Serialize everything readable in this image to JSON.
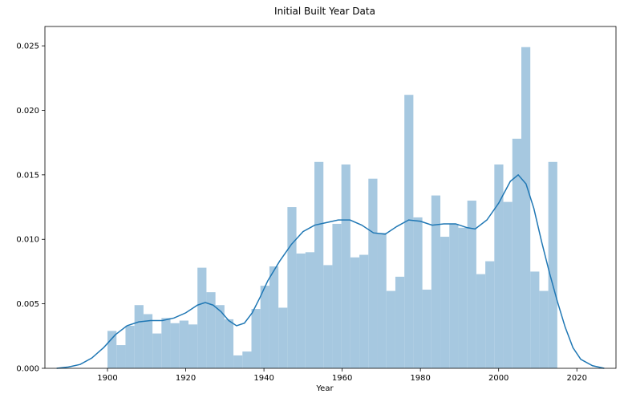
{
  "chart_data": {
    "type": "histogram",
    "title": "Initial Built Year Data",
    "xlabel": "Year",
    "ylabel": "",
    "xlim": [
      1884,
      2030
    ],
    "ylim": [
      0,
      0.0265
    ],
    "x_ticks": [
      1900,
      1920,
      1940,
      1960,
      1980,
      2000,
      2020
    ],
    "y_ticks": [
      "0.000",
      "0.005",
      "0.010",
      "0.015",
      "0.020",
      "0.025"
    ],
    "grid": false,
    "legend": "none",
    "bar_color": "#a6c8e0",
    "line_color": "#1f77b4",
    "bins": {
      "start": 1900,
      "end": 2015,
      "values": [
        0.0029,
        0.0018,
        0.0033,
        0.0049,
        0.0042,
        0.0027,
        0.0039,
        0.0035,
        0.0037,
        0.0034,
        0.0078,
        0.0059,
        0.0049,
        0.0038,
        0.001,
        0.0013,
        0.0046,
        0.0064,
        0.0079,
        0.0047,
        0.0125,
        0.0089,
        0.009,
        0.016,
        0.008,
        0.0112,
        0.0158,
        0.0086,
        0.0088,
        0.0147,
        0.0105,
        0.006,
        0.0071,
        0.0212,
        0.0117,
        0.0061,
        0.0134,
        0.0102,
        0.0112,
        0.0109,
        0.013,
        0.0073,
        0.0083,
        0.0158,
        0.0129,
        0.0178,
        0.0249,
        0.0075,
        0.006,
        0.016
      ]
    },
    "kde_line": {
      "x": [
        1887,
        1890,
        1893,
        1896,
        1899,
        1902,
        1905,
        1908,
        1911,
        1914,
        1917,
        1920,
        1923,
        1925,
        1927,
        1929,
        1931,
        1933,
        1935,
        1937,
        1939,
        1941,
        1944,
        1947,
        1950,
        1953,
        1956,
        1959,
        1962,
        1965,
        1968,
        1971,
        1974,
        1977,
        1980,
        1983,
        1986,
        1989,
        1992,
        1994,
        1997,
        2000,
        2003,
        2005,
        2007,
        2009,
        2011,
        2013,
        2015,
        2017,
        2019,
        2021,
        2024,
        2027
      ],
      "y": [
        0.0,
        0.0001,
        0.0003,
        0.0008,
        0.0016,
        0.0026,
        0.0033,
        0.0036,
        0.0037,
        0.0037,
        0.0039,
        0.0043,
        0.0049,
        0.0051,
        0.0049,
        0.0044,
        0.0037,
        0.0033,
        0.0035,
        0.0043,
        0.0055,
        0.0068,
        0.0083,
        0.0096,
        0.0106,
        0.0111,
        0.0113,
        0.0115,
        0.0115,
        0.0111,
        0.0105,
        0.0104,
        0.011,
        0.0115,
        0.0114,
        0.0111,
        0.0112,
        0.0112,
        0.0109,
        0.0108,
        0.0115,
        0.0128,
        0.0145,
        0.015,
        0.0143,
        0.0124,
        0.0098,
        0.0074,
        0.0052,
        0.0032,
        0.0016,
        0.0007,
        0.0002,
        0.0
      ]
    }
  }
}
